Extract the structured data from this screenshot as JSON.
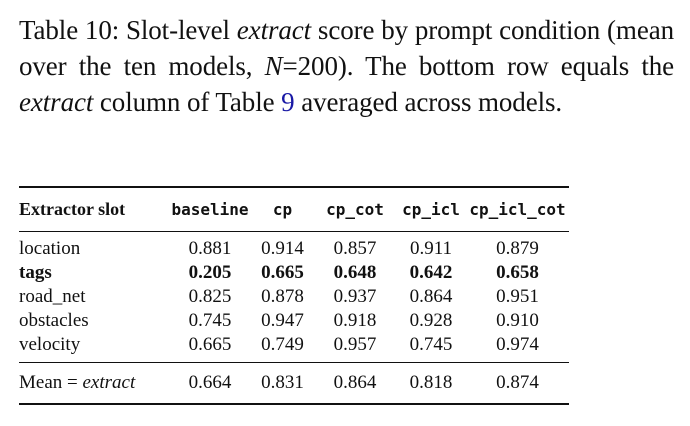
{
  "caption": {
    "label": "Table 10:",
    "text_1": " Slot-level ",
    "em_1": "extract",
    "text_2": " score by prompt condition (mean over the ten models, ",
    "var": "N",
    "text_3": "=200). The bottom row equals the ",
    "em_2": "extract",
    "text_4": " column of Table ",
    "ref": "9",
    "text_5": " averaged across models."
  },
  "table": {
    "headers": [
      "Extractor slot",
      "baseline",
      "cp",
      "cp_cot",
      "cp_icl",
      "cp_icl_cot"
    ],
    "rows": [
      {
        "slot": "location",
        "values": [
          "0.881",
          "0.914",
          "0.857",
          "0.911",
          "0.879"
        ],
        "bold": false
      },
      {
        "slot": "tags",
        "values": [
          "0.205",
          "0.665",
          "0.648",
          "0.642",
          "0.658"
        ],
        "bold": true
      },
      {
        "slot": "road_net",
        "values": [
          "0.825",
          "0.878",
          "0.937",
          "0.864",
          "0.951"
        ],
        "bold": false
      },
      {
        "slot": "obstacles",
        "values": [
          "0.745",
          "0.947",
          "0.918",
          "0.928",
          "0.910"
        ],
        "bold": false
      },
      {
        "slot": "velocity",
        "values": [
          "0.665",
          "0.749",
          "0.957",
          "0.745",
          "0.974"
        ],
        "bold": false
      }
    ],
    "mean_row": {
      "label_prefix": "Mean = ",
      "label_em": "extract",
      "values": [
        "0.664",
        "0.831",
        "0.864",
        "0.818",
        "0.874"
      ]
    }
  }
}
